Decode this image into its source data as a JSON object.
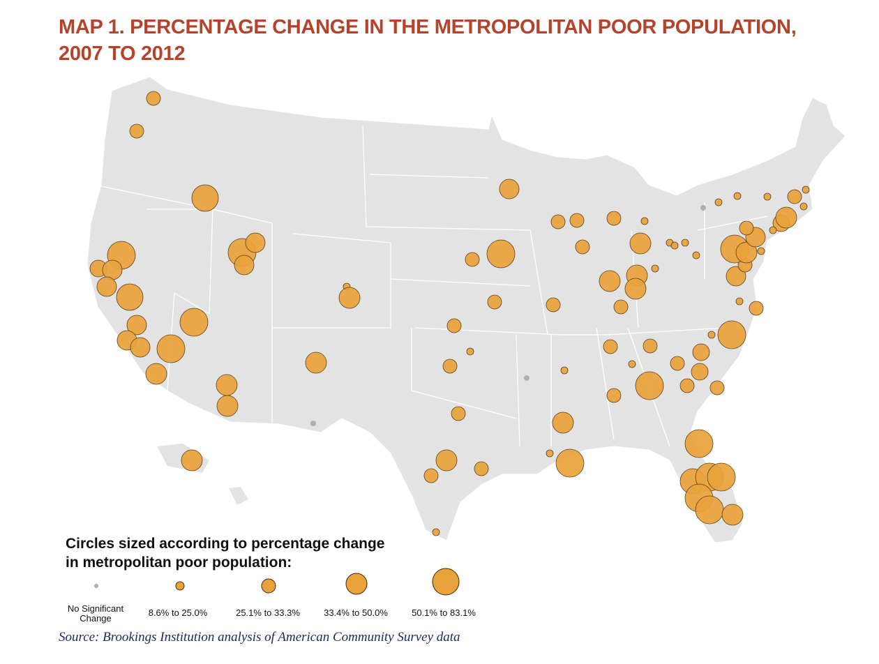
{
  "title": {
    "line1": "MAP 1. PERCENTAGE CHANGE IN THE METROPOLITAN POOR POPULATION,",
    "line2": "2007 TO 2012"
  },
  "legend": {
    "heading1": "Circles sized according to percentage change",
    "heading2": "in metropolitan poor population:",
    "items": [
      {
        "label": "No Significant Change",
        "color": "#aaaaaa"
      },
      {
        "label": "8.6% to 25.0%",
        "color": "#e9a23b"
      },
      {
        "label": "25.1% to 33.3%",
        "color": "#e9a23b"
      },
      {
        "label": "33.4% to 50.0%",
        "color": "#e9a23b"
      },
      {
        "label": "50.1% to 83.1%",
        "color": "#e9a23b"
      }
    ]
  },
  "source": "Source: Brookings Institution analysis of American Community Survey data",
  "colors": {
    "land": "#e3e3e3",
    "marker": "#e9a23b",
    "title": "#b5432b"
  }
}
